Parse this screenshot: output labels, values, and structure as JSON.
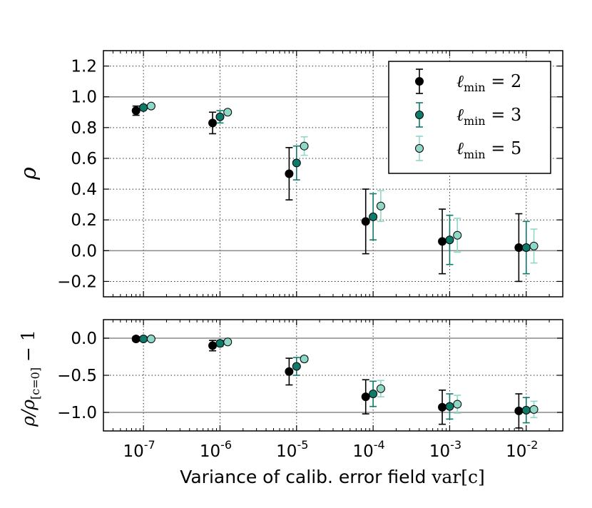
{
  "chart_data": [
    {
      "type": "scatter",
      "panel": "top",
      "ylabel": "ρ",
      "ylim": [
        -0.3,
        1.3
      ],
      "yticks": [
        -0.2,
        0.0,
        0.2,
        0.4,
        0.6,
        0.8,
        1.0,
        1.2
      ],
      "ytick_labels": [
        "−0.2",
        "0.0",
        "0.2",
        "0.4",
        "0.6",
        "0.8",
        "1.0",
        "1.2"
      ],
      "xscale": "log",
      "grid": true,
      "reference_lines": [
        0.0,
        1.0
      ],
      "legend_position": "top-right",
      "series": [
        {
          "name": "ℓmin = 2",
          "legend_label": "ℓ",
          "legend_sub": "min",
          "legend_eq": " = 2",
          "color": "#000000",
          "x": [
            8e-08,
            8e-07,
            8e-06,
            8e-05,
            0.0008,
            0.008
          ],
          "y": [
            0.91,
            0.83,
            0.5,
            0.19,
            0.06,
            0.02
          ],
          "err": [
            0.03,
            0.07,
            0.17,
            0.21,
            0.21,
            0.22
          ]
        },
        {
          "name": "ℓmin = 3",
          "legend_label": "ℓ",
          "legend_sub": "min",
          "legend_eq": " = 3",
          "color": "#0e7a6a",
          "x": [
            1e-07,
            1e-06,
            1e-05,
            0.0001,
            0.001,
            0.01
          ],
          "y": [
            0.93,
            0.87,
            0.57,
            0.22,
            0.07,
            0.02
          ],
          "err": [
            0.01,
            0.04,
            0.11,
            0.15,
            0.16,
            0.17
          ]
        },
        {
          "name": "ℓmin = 5",
          "legend_label": "ℓ",
          "legend_sub": "min",
          "legend_eq": " = 5",
          "color": "#8fd8c8",
          "x": [
            1.26e-07,
            1.26e-06,
            1.26e-05,
            0.000126,
            0.00126,
            0.0126
          ],
          "y": [
            0.94,
            0.9,
            0.68,
            0.29,
            0.1,
            0.03
          ],
          "err": [
            0.01,
            0.01,
            0.06,
            0.1,
            0.11,
            0.11
          ]
        }
      ]
    },
    {
      "type": "scatter",
      "panel": "bottom",
      "ylabel": "ρ/ρ[c=0] − 1",
      "ylabel_main": "ρ/ρ",
      "ylabel_sub": "[c=0]",
      "ylabel_tail": " − 1",
      "ylim": [
        -1.25,
        0.25
      ],
      "yticks": [
        -1.0,
        -0.5,
        0.0
      ],
      "ytick_labels": [
        "−1.0",
        "−0.5",
        "0.0"
      ],
      "xlabel": "Variance of calib. error field",
      "xlabel_math": "var[c]",
      "xscale": "log",
      "xlim": [
        3e-08,
        0.03
      ],
      "xticks": [
        1e-07,
        1e-06,
        1e-05,
        0.0001,
        0.001,
        0.01
      ],
      "xtick_base": [
        "10",
        "10",
        "10",
        "10",
        "10",
        "10"
      ],
      "xtick_exp": [
        "-7",
        "-6",
        "-5",
        "-4",
        "-3",
        "-2"
      ],
      "grid": true,
      "reference_lines": [
        0.0,
        -1.0
      ],
      "series": [
        {
          "name": "ℓmin = 2",
          "color": "#000000",
          "x": [
            8e-08,
            8e-07,
            8e-06,
            8e-05,
            0.0008,
            0.008
          ],
          "y": [
            -0.01,
            -0.1,
            -0.45,
            -0.79,
            -0.93,
            -0.98
          ],
          "err": [
            0.03,
            0.07,
            0.18,
            0.23,
            0.23,
            0.23
          ]
        },
        {
          "name": "ℓmin = 3",
          "color": "#0e7a6a",
          "x": [
            1e-07,
            1e-06,
            1e-05,
            0.0001,
            0.001,
            0.01
          ],
          "y": [
            -0.01,
            -0.07,
            -0.38,
            -0.75,
            -0.92,
            -0.97
          ],
          "err": [
            0.01,
            0.04,
            0.12,
            0.17,
            0.17,
            0.17
          ]
        },
        {
          "name": "ℓmin = 5",
          "color": "#8fd8c8",
          "x": [
            1.26e-07,
            1.26e-06,
            1.26e-05,
            0.000126,
            0.00126,
            0.0126
          ],
          "y": [
            -0.01,
            -0.05,
            -0.28,
            -0.68,
            -0.89,
            -0.96
          ],
          "err": [
            0.01,
            0.02,
            0.04,
            0.11,
            0.12,
            0.11
          ]
        }
      ]
    }
  ]
}
